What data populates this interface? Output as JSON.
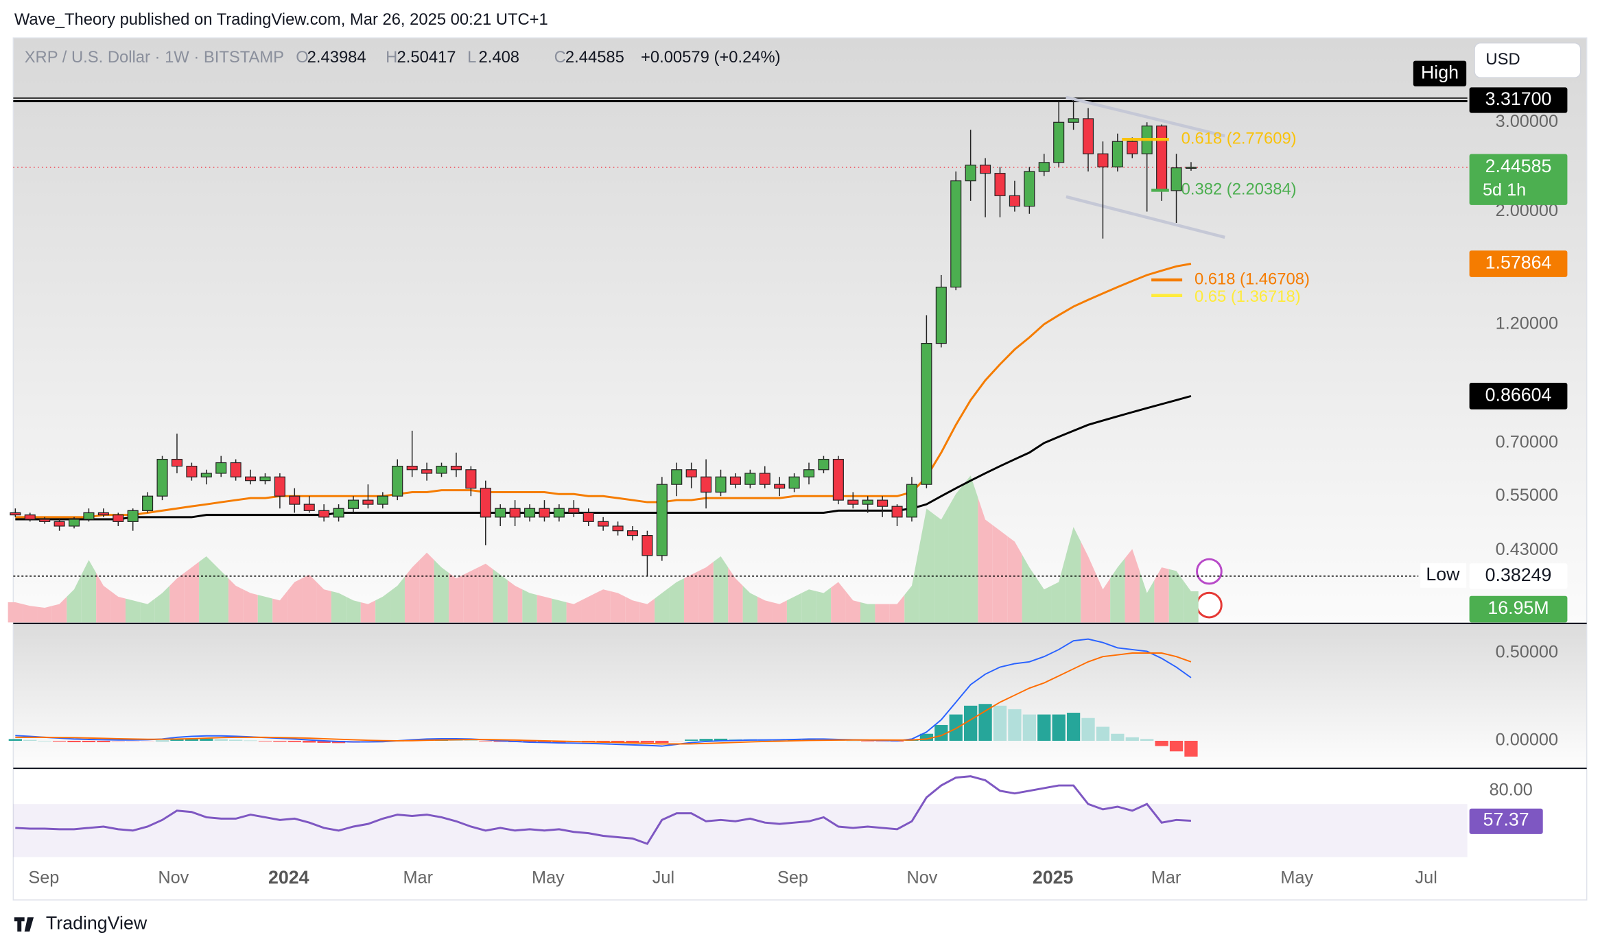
{
  "header": {
    "publisher": "Wave_Theory published on TradingView.com, Mar 26, 2025 00:21 UTC+1",
    "footer": "TradingView"
  },
  "toolbar": {
    "currency": "USD"
  },
  "chart_data": {
    "type": "candlestick",
    "symbol": "XRP / U.S. Dollar · 1W · BITSTAMP",
    "ohlc_labels": [
      "O",
      "H",
      "L",
      "C"
    ],
    "change": "+0.00579 (+0.24%)",
    "countdown": "5d 1h",
    "log_scale": true,
    "up_color": "#4caf50",
    "down_color": "#f23645",
    "xlim": [
      -0.14,
      98.8
    ],
    "xticks": [
      {
        "value": 1.94,
        "label": "Sep"
      },
      {
        "value": 10.76,
        "label": "Nov"
      },
      {
        "value": 18.6,
        "label": "2024"
      },
      {
        "value": 27.4,
        "label": "Mar"
      },
      {
        "value": 36.25,
        "label": "May"
      },
      {
        "value": 44.1,
        "label": "Jul"
      },
      {
        "value": 52.9,
        "label": "Sep"
      },
      {
        "value": 61.7,
        "label": "Nov"
      },
      {
        "value": 70.6,
        "label": "2025"
      },
      {
        "value": 78.3,
        "label": "Mar"
      },
      {
        "value": 87.2,
        "label": "May"
      },
      {
        "value": 96.0,
        "label": "Jul"
      }
    ],
    "ylim": [
      0.31,
      4.34
    ],
    "yticks": [
      {
        "value": 3,
        "label": "3.00000"
      },
      {
        "value": 2,
        "label": "2.00000"
      },
      {
        "value": 1.2,
        "label": "1.20000"
      },
      {
        "value": 0.7,
        "label": "0.70000"
      },
      {
        "value": 0.55,
        "label": "0.55000"
      },
      {
        "value": 0.43,
        "label": "0.43000"
      }
    ],
    "candles": [
      [
        0.51,
        0.52,
        0.5,
        0.505
      ],
      [
        0.505,
        0.51,
        0.49,
        0.495
      ],
      [
        0.495,
        0.5,
        0.485,
        0.49
      ],
      [
        0.49,
        0.495,
        0.47,
        0.48
      ],
      [
        0.48,
        0.5,
        0.475,
        0.495
      ],
      [
        0.495,
        0.52,
        0.49,
        0.51
      ],
      [
        0.51,
        0.52,
        0.5,
        0.505
      ],
      [
        0.505,
        0.51,
        0.48,
        0.49
      ],
      [
        0.49,
        0.52,
        0.47,
        0.515
      ],
      [
        0.515,
        0.56,
        0.51,
        0.55
      ],
      [
        0.55,
        0.66,
        0.54,
        0.65
      ],
      [
        0.65,
        0.73,
        0.61,
        0.63
      ],
      [
        0.63,
        0.64,
        0.59,
        0.6
      ],
      [
        0.6,
        0.62,
        0.58,
        0.61
      ],
      [
        0.61,
        0.66,
        0.6,
        0.64
      ],
      [
        0.64,
        0.65,
        0.59,
        0.6
      ],
      [
        0.6,
        0.62,
        0.58,
        0.59
      ],
      [
        0.59,
        0.61,
        0.58,
        0.6
      ],
      [
        0.6,
        0.61,
        0.52,
        0.55
      ],
      [
        0.55,
        0.57,
        0.51,
        0.53
      ],
      [
        0.53,
        0.55,
        0.51,
        0.515
      ],
      [
        0.515,
        0.53,
        0.49,
        0.5
      ],
      [
        0.5,
        0.53,
        0.49,
        0.52
      ],
      [
        0.52,
        0.55,
        0.51,
        0.54
      ],
      [
        0.54,
        0.58,
        0.52,
        0.53
      ],
      [
        0.53,
        0.56,
        0.52,
        0.55
      ],
      [
        0.55,
        0.65,
        0.54,
        0.63
      ],
      [
        0.63,
        0.74,
        0.6,
        0.62
      ],
      [
        0.62,
        0.64,
        0.59,
        0.61
      ],
      [
        0.61,
        0.64,
        0.6,
        0.63
      ],
      [
        0.63,
        0.67,
        0.6,
        0.62
      ],
      [
        0.62,
        0.63,
        0.55,
        0.57
      ],
      [
        0.57,
        0.59,
        0.44,
        0.5
      ],
      [
        0.5,
        0.53,
        0.48,
        0.52
      ],
      [
        0.52,
        0.54,
        0.48,
        0.5
      ],
      [
        0.5,
        0.53,
        0.49,
        0.52
      ],
      [
        0.52,
        0.54,
        0.49,
        0.5
      ],
      [
        0.5,
        0.53,
        0.49,
        0.52
      ],
      [
        0.52,
        0.54,
        0.5,
        0.51
      ],
      [
        0.51,
        0.52,
        0.48,
        0.49
      ],
      [
        0.49,
        0.5,
        0.47,
        0.48
      ],
      [
        0.48,
        0.49,
        0.46,
        0.47
      ],
      [
        0.47,
        0.48,
        0.45,
        0.46
      ],
      [
        0.46,
        0.47,
        0.38249,
        0.42
      ],
      [
        0.42,
        0.6,
        0.41,
        0.58
      ],
      [
        0.58,
        0.64,
        0.55,
        0.62
      ],
      [
        0.62,
        0.64,
        0.57,
        0.6
      ],
      [
        0.6,
        0.65,
        0.52,
        0.56
      ],
      [
        0.56,
        0.62,
        0.55,
        0.6
      ],
      [
        0.6,
        0.61,
        0.57,
        0.58
      ],
      [
        0.58,
        0.62,
        0.57,
        0.61
      ],
      [
        0.61,
        0.63,
        0.57,
        0.58
      ],
      [
        0.58,
        0.6,
        0.55,
        0.57
      ],
      [
        0.57,
        0.61,
        0.56,
        0.6
      ],
      [
        0.6,
        0.64,
        0.58,
        0.62
      ],
      [
        0.62,
        0.66,
        0.61,
        0.65
      ],
      [
        0.65,
        0.66,
        0.53,
        0.54
      ],
      [
        0.54,
        0.56,
        0.52,
        0.53
      ],
      [
        0.53,
        0.55,
        0.51,
        0.54
      ],
      [
        0.54,
        0.55,
        0.5,
        0.525
      ],
      [
        0.525,
        0.53,
        0.48,
        0.5
      ],
      [
        0.5,
        0.6,
        0.49,
        0.58
      ],
      [
        0.58,
        1.25,
        0.57,
        1.1
      ],
      [
        1.1,
        1.5,
        1.08,
        1.42
      ],
      [
        1.42,
        2.4,
        1.4,
        2.3
      ],
      [
        2.3,
        2.9,
        2.1,
        2.47
      ],
      [
        2.47,
        2.55,
        1.95,
        2.38
      ],
      [
        2.38,
        2.45,
        1.95,
        2.15
      ],
      [
        2.15,
        2.3,
        2.0,
        2.05
      ],
      [
        2.05,
        2.45,
        1.98,
        2.4
      ],
      [
        2.4,
        2.6,
        2.35,
        2.5
      ],
      [
        2.5,
        3.3,
        2.45,
        3.0
      ],
      [
        3.0,
        3.317,
        2.9,
        3.05
      ],
      [
        3.05,
        3.2,
        2.4,
        2.6
      ],
      [
        2.6,
        2.75,
        1.77,
        2.45
      ],
      [
        2.45,
        2.85,
        2.4,
        2.75
      ],
      [
        2.75,
        2.8,
        2.55,
        2.6
      ],
      [
        2.6,
        3.0,
        2.0,
        2.95
      ],
      [
        2.95,
        2.97,
        2.1,
        2.2
      ],
      [
        2.2,
        2.6,
        1.9,
        2.44
      ],
      [
        2.43984,
        2.50417,
        2.408,
        2.44585
      ]
    ],
    "moving_averages": [
      {
        "color": "#f57c00",
        "values": [
          0.5,
          0.5,
          0.5,
          0.5,
          0.5,
          0.5,
          0.505,
          0.505,
          0.505,
          0.51,
          0.515,
          0.52,
          0.525,
          0.53,
          0.535,
          0.54,
          0.545,
          0.545,
          0.55,
          0.55,
          0.55,
          0.55,
          0.55,
          0.55,
          0.55,
          0.55,
          0.555,
          0.56,
          0.56,
          0.565,
          0.565,
          0.565,
          0.56,
          0.56,
          0.56,
          0.56,
          0.56,
          0.555,
          0.555,
          0.55,
          0.55,
          0.545,
          0.54,
          0.535,
          0.535,
          0.54,
          0.54,
          0.545,
          0.545,
          0.545,
          0.545,
          0.545,
          0.545,
          0.55,
          0.55,
          0.55,
          0.55,
          0.55,
          0.55,
          0.55,
          0.55,
          0.56,
          0.6,
          0.67,
          0.76,
          0.85,
          0.93,
          1.0,
          1.07,
          1.13,
          1.2,
          1.25,
          1.3,
          1.34,
          1.38,
          1.42,
          1.46,
          1.5,
          1.53,
          1.56,
          1.57864
        ]
      },
      {
        "color": "#000000",
        "values": [
          0.495,
          0.495,
          0.495,
          0.495,
          0.495,
          0.495,
          0.495,
          0.495,
          0.5,
          0.5,
          0.5,
          0.5,
          0.5,
          0.505,
          0.505,
          0.505,
          0.505,
          0.505,
          0.505,
          0.505,
          0.505,
          0.505,
          0.51,
          0.51,
          0.51,
          0.51,
          0.51,
          0.51,
          0.51,
          0.51,
          0.51,
          0.51,
          0.51,
          0.51,
          0.51,
          0.51,
          0.51,
          0.51,
          0.51,
          0.51,
          0.51,
          0.51,
          0.51,
          0.51,
          0.51,
          0.51,
          0.51,
          0.51,
          0.51,
          0.51,
          0.51,
          0.51,
          0.51,
          0.51,
          0.51,
          0.51,
          0.515,
          0.515,
          0.515,
          0.515,
          0.515,
          0.52,
          0.53,
          0.55,
          0.57,
          0.59,
          0.61,
          0.63,
          0.65,
          0.67,
          0.7,
          0.72,
          0.74,
          0.76,
          0.775,
          0.79,
          0.805,
          0.82,
          0.835,
          0.85,
          0.86604
        ]
      }
    ],
    "high": {
      "tag": "High",
      "value": 3.317,
      "label": "3.31700"
    },
    "low": {
      "tag": "Low",
      "value": 0.38249
    },
    "fib_levels": [
      {
        "label": "0.618 (2.77609)",
        "value": 2.77609,
        "color": "#f9c20a",
        "x": [
          75.3,
          78.5
        ]
      },
      {
        "label": "0.382 (2.20384)",
        "value": 2.20384,
        "color": "#4caf50",
        "x": [
          77.3,
          78.5
        ]
      },
      {
        "label": "0.618 (1.46708)",
        "value": 1.46708,
        "color": "#f57c00",
        "x": [
          77.3,
          79.4
        ]
      },
      {
        "label": "0.65 (1.36718)",
        "value": 1.36718,
        "color": "#ffeb3b",
        "x": [
          77.3,
          79.4
        ]
      }
    ],
    "trendlines": [
      {
        "x": [
          71.5,
          82.3
        ],
        "y": [
          3.36,
          2.82
        ]
      },
      {
        "x": [
          71.5,
          82.3
        ],
        "y": [
          2.14,
          1.78
        ]
      }
    ],
    "volume": {
      "values": [
        11,
        9,
        8,
        10,
        18,
        34,
        20,
        14,
        12,
        10,
        16,
        24,
        30,
        36,
        28,
        20,
        16,
        14,
        12,
        22,
        26,
        18,
        16,
        12,
        10,
        14,
        20,
        30,
        38,
        30,
        24,
        28,
        32,
        26,
        20,
        16,
        14,
        12,
        10,
        14,
        18,
        16,
        12,
        10,
        16,
        22,
        26,
        30,
        36,
        24,
        16,
        12,
        10,
        14,
        18,
        16,
        22,
        12,
        10,
        10,
        10,
        20,
        62,
        56,
        70,
        80,
        56,
        50,
        44,
        30,
        18,
        22,
        52,
        36,
        18,
        30,
        40,
        16,
        30,
        28,
        16.95
      ],
      "value_labels": [
        null,
        null,
        null,
        null,
        null,
        null,
        null,
        null,
        null,
        null,
        null,
        null,
        null,
        null,
        null,
        null,
        null,
        null,
        null,
        null,
        null,
        null,
        null,
        null,
        null,
        null,
        null,
        null,
        null,
        null,
        null,
        null,
        null,
        null,
        null,
        null,
        null,
        null,
        null,
        null,
        null,
        null,
        null,
        null,
        null,
        null,
        null,
        null,
        null,
        null,
        null,
        null,
        null,
        null,
        null,
        null,
        null,
        null,
        null,
        null,
        null,
        null,
        null,
        null,
        null,
        null,
        null,
        null,
        null,
        null,
        null,
        null,
        null,
        null,
        null,
        null,
        null,
        null,
        null,
        null,
        "16.95M"
      ]
    },
    "macd": {
      "ylim": [
        -0.151,
        0.663
      ],
      "yticks": [
        {
          "value": 0.5,
          "label": "0.50000"
        },
        {
          "value": 0,
          "label": "0.00000"
        }
      ],
      "macd": {
        "color": "#2962ff",
        "values": [
          0.03,
          0.025,
          0.02,
          0.015,
          0.01,
          0.008,
          0.006,
          0.005,
          0.005,
          0.006,
          0.01,
          0.02,
          0.025,
          0.028,
          0.028,
          0.026,
          0.022,
          0.018,
          0.014,
          0.01,
          0.005,
          0,
          -0.004,
          -0.006,
          -0.006,
          -0.005,
          0,
          0.006,
          0.01,
          0.012,
          0.012,
          0.01,
          0.006,
          0,
          -0.004,
          -0.008,
          -0.01,
          -0.012,
          -0.013,
          -0.015,
          -0.017,
          -0.02,
          -0.023,
          -0.026,
          -0.03,
          -0.02,
          -0.01,
          -0.004,
          0,
          0.002,
          0.004,
          0.005,
          0.006,
          0.008,
          0.01,
          0.01,
          0.008,
          0.006,
          0.004,
          0.002,
          0,
          0.01,
          0.05,
          0.12,
          0.22,
          0.32,
          0.38,
          0.42,
          0.44,
          0.45,
          0.48,
          0.52,
          0.57,
          0.58,
          0.56,
          0.53,
          0.52,
          0.51,
          0.47,
          0.42,
          0.36
        ]
      },
      "signal": {
        "color": "#ff6d00",
        "values": [
          0.02,
          0.02,
          0.02,
          0.019,
          0.018,
          0.016,
          0.014,
          0.012,
          0.01,
          0.009,
          0.009,
          0.01,
          0.012,
          0.015,
          0.018,
          0.02,
          0.02,
          0.02,
          0.019,
          0.017,
          0.015,
          0.012,
          0.009,
          0.006,
          0.003,
          0.001,
          0,
          0.001,
          0.003,
          0.005,
          0.006,
          0.007,
          0.007,
          0.006,
          0.004,
          0.002,
          0,
          -0.002,
          -0.004,
          -0.006,
          -0.008,
          -0.01,
          -0.012,
          -0.015,
          -0.018,
          -0.018,
          -0.017,
          -0.015,
          -0.012,
          -0.009,
          -0.006,
          -0.004,
          -0.002,
          0,
          0.002,
          0.003,
          0.004,
          0.005,
          0.005,
          0.005,
          0.004,
          0.005,
          0.01,
          0.03,
          0.07,
          0.12,
          0.17,
          0.22,
          0.26,
          0.3,
          0.33,
          0.37,
          0.41,
          0.45,
          0.48,
          0.49,
          0.5,
          0.5,
          0.5,
          0.48,
          0.45
        ]
      },
      "histogram": [
        0.01,
        0.005,
        0,
        -0.004,
        -0.008,
        -0.008,
        -0.008,
        -0.007,
        -0.005,
        -0.003,
        0.001,
        0.01,
        0.013,
        0.013,
        0.01,
        0.006,
        0.002,
        -0.002,
        -0.005,
        -0.007,
        -0.01,
        -0.012,
        -0.013,
        -0.012,
        -0.009,
        -0.006,
        0,
        0.005,
        0.007,
        0.007,
        0.006,
        0.003,
        -0.001,
        -0.006,
        -0.008,
        -0.01,
        -0.01,
        -0.01,
        -0.009,
        -0.009,
        -0.009,
        -0.01,
        -0.011,
        -0.011,
        -0.012,
        -0.002,
        0.007,
        0.011,
        0.012,
        0.011,
        0.01,
        0.009,
        0.008,
        0.008,
        0.008,
        0.007,
        0.004,
        0.001,
        -0.001,
        -0.003,
        -0.004,
        0.005,
        0.04,
        0.09,
        0.15,
        0.2,
        0.21,
        0.2,
        0.18,
        0.15,
        0.15,
        0.15,
        0.16,
        0.13,
        0.08,
        0.04,
        0.02,
        0.01,
        -0.03,
        -0.06,
        -0.09
      ]
    },
    "rsi": {
      "ylim": [
        22.3,
        96.2
      ],
      "yticks": [
        {
          "value": 80,
          "label": "80.00"
        }
      ],
      "band": [
        30,
        70
      ],
      "color": "#7e57c2",
      "values": [
        52,
        51.5,
        51.5,
        51,
        51,
        52,
        53,
        51,
        50,
        53,
        58,
        65,
        64,
        60,
        59,
        59,
        62,
        60,
        58,
        59,
        56,
        52,
        50,
        53,
        55,
        59,
        62,
        61,
        62,
        60,
        57,
        53,
        50,
        52,
        50,
        51,
        50,
        51,
        49,
        48,
        46,
        45,
        44,
        40,
        58,
        63,
        63,
        57,
        58,
        57,
        59,
        56,
        55,
        56,
        57,
        60,
        53,
        52,
        53,
        52,
        51,
        57,
        75,
        84,
        90,
        91,
        88,
        80,
        78,
        80,
        82,
        84,
        84,
        70,
        66,
        68,
        65,
        70,
        56,
        58,
        57.37
      ]
    }
  }
}
